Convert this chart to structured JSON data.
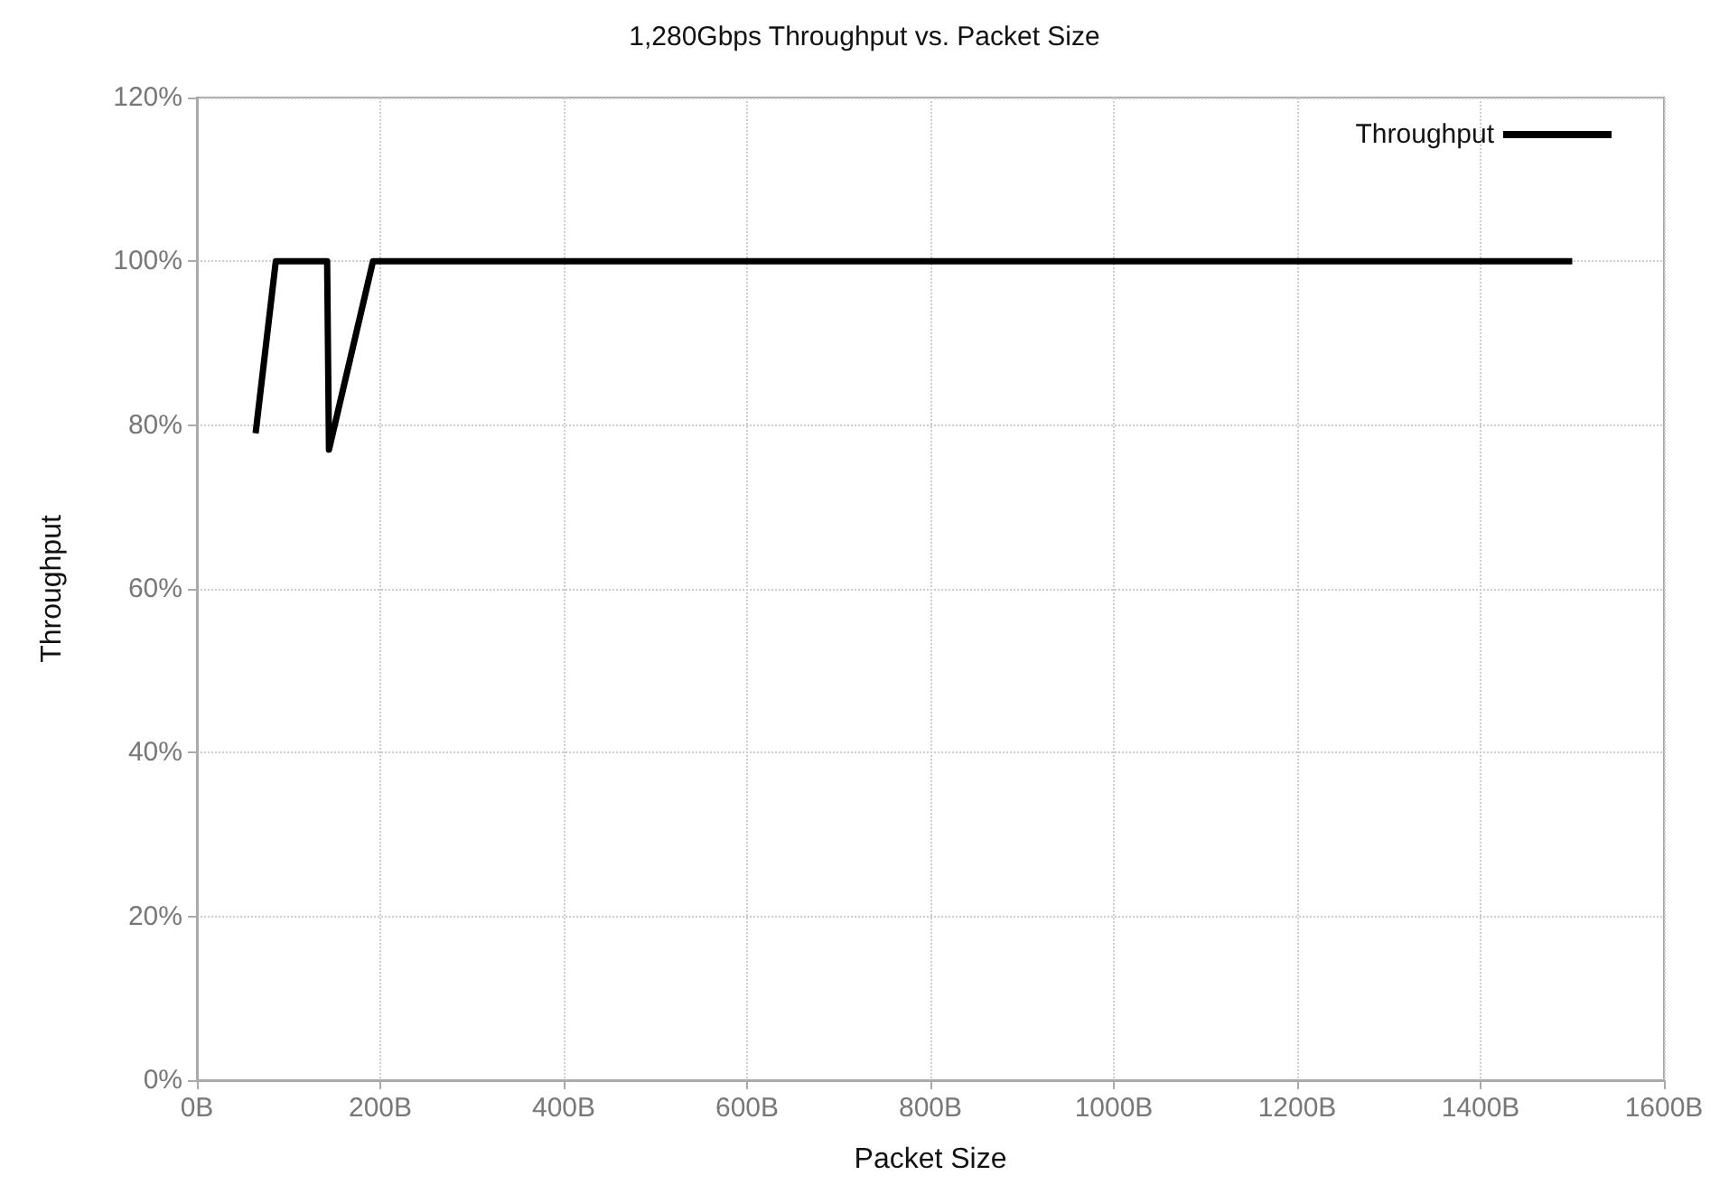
{
  "chart_data": {
    "type": "line",
    "title": "1,280Gbps Throughput vs. Packet Size",
    "xlabel": "Packet Size",
    "ylabel": "Throughput",
    "series": [
      {
        "name": "Throughput",
        "color": "#000000",
        "x": [
          64,
          86,
          142,
          144,
          192,
          1500
        ],
        "values": [
          79,
          100,
          100,
          77,
          100,
          100
        ]
      }
    ],
    "xlim": [
      0,
      1600
    ],
    "xticks": [
      {
        "value": 0,
        "label": "0B"
      },
      {
        "value": 200,
        "label": "200B"
      },
      {
        "value": 400,
        "label": "400B"
      },
      {
        "value": 600,
        "label": "600B"
      },
      {
        "value": 800,
        "label": "800B"
      },
      {
        "value": 1000,
        "label": "1000B"
      },
      {
        "value": 1200,
        "label": "1200B"
      },
      {
        "value": 1400,
        "label": "1400B"
      },
      {
        "value": 1600,
        "label": "1600B"
      }
    ],
    "ylim": [
      0,
      120
    ],
    "yticks": [
      {
        "value": 0,
        "label": "0%"
      },
      {
        "value": 20,
        "label": "20%"
      },
      {
        "value": 40,
        "label": "40%"
      },
      {
        "value": 60,
        "label": "60%"
      },
      {
        "value": 80,
        "label": "80%"
      },
      {
        "value": 100,
        "label": "100%"
      },
      {
        "value": 120,
        "label": "120%"
      }
    ],
    "grid": true,
    "legend": "top right",
    "marker": "none",
    "line_style": "solid"
  }
}
